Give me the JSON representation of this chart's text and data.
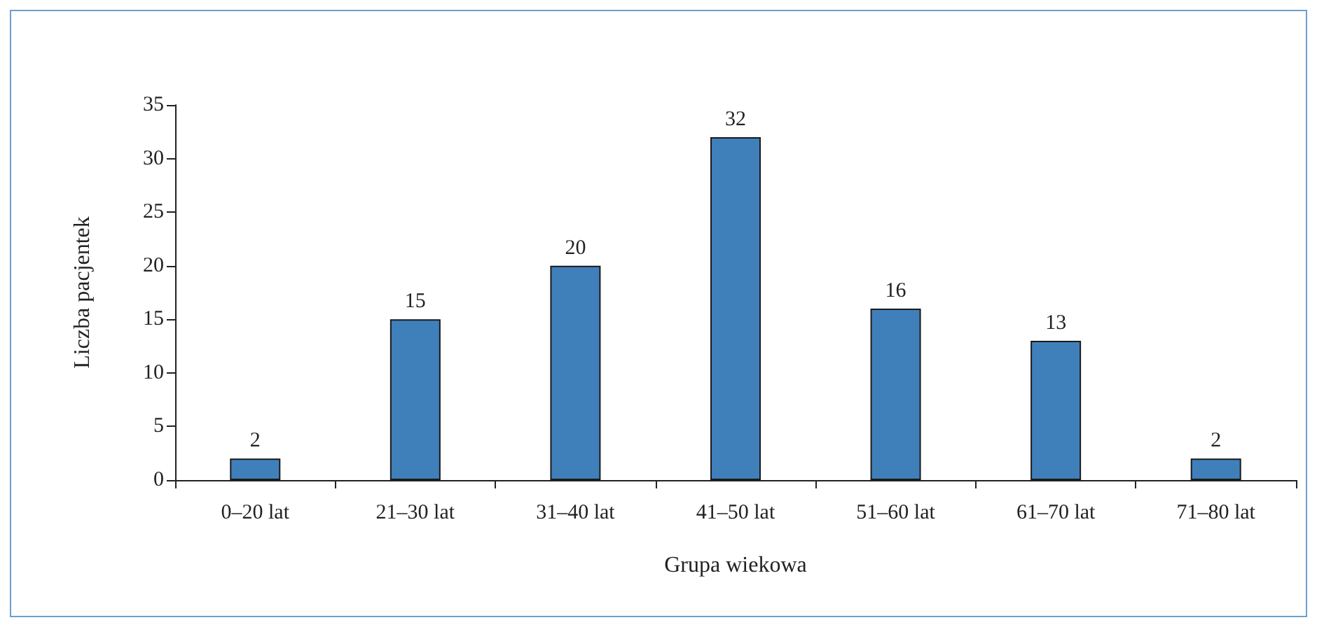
{
  "chart_data": {
    "type": "bar",
    "xlabel": "Grupa wiekowa",
    "ylabel": "Liczba pacjentek",
    "categories": [
      "0–20 lat",
      "21–30 lat",
      "31–40 lat",
      "41–50 lat",
      "51–60 lat",
      "61–70 lat",
      "71–80 lat"
    ],
    "values": [
      2,
      15,
      20,
      32,
      16,
      13,
      2
    ],
    "color": "#3f80bb",
    "ylim": [
      0,
      35
    ],
    "yticks": [
      0,
      5,
      10,
      15,
      20,
      25,
      30,
      35
    ],
    "grid": false,
    "data_labels": true
  }
}
